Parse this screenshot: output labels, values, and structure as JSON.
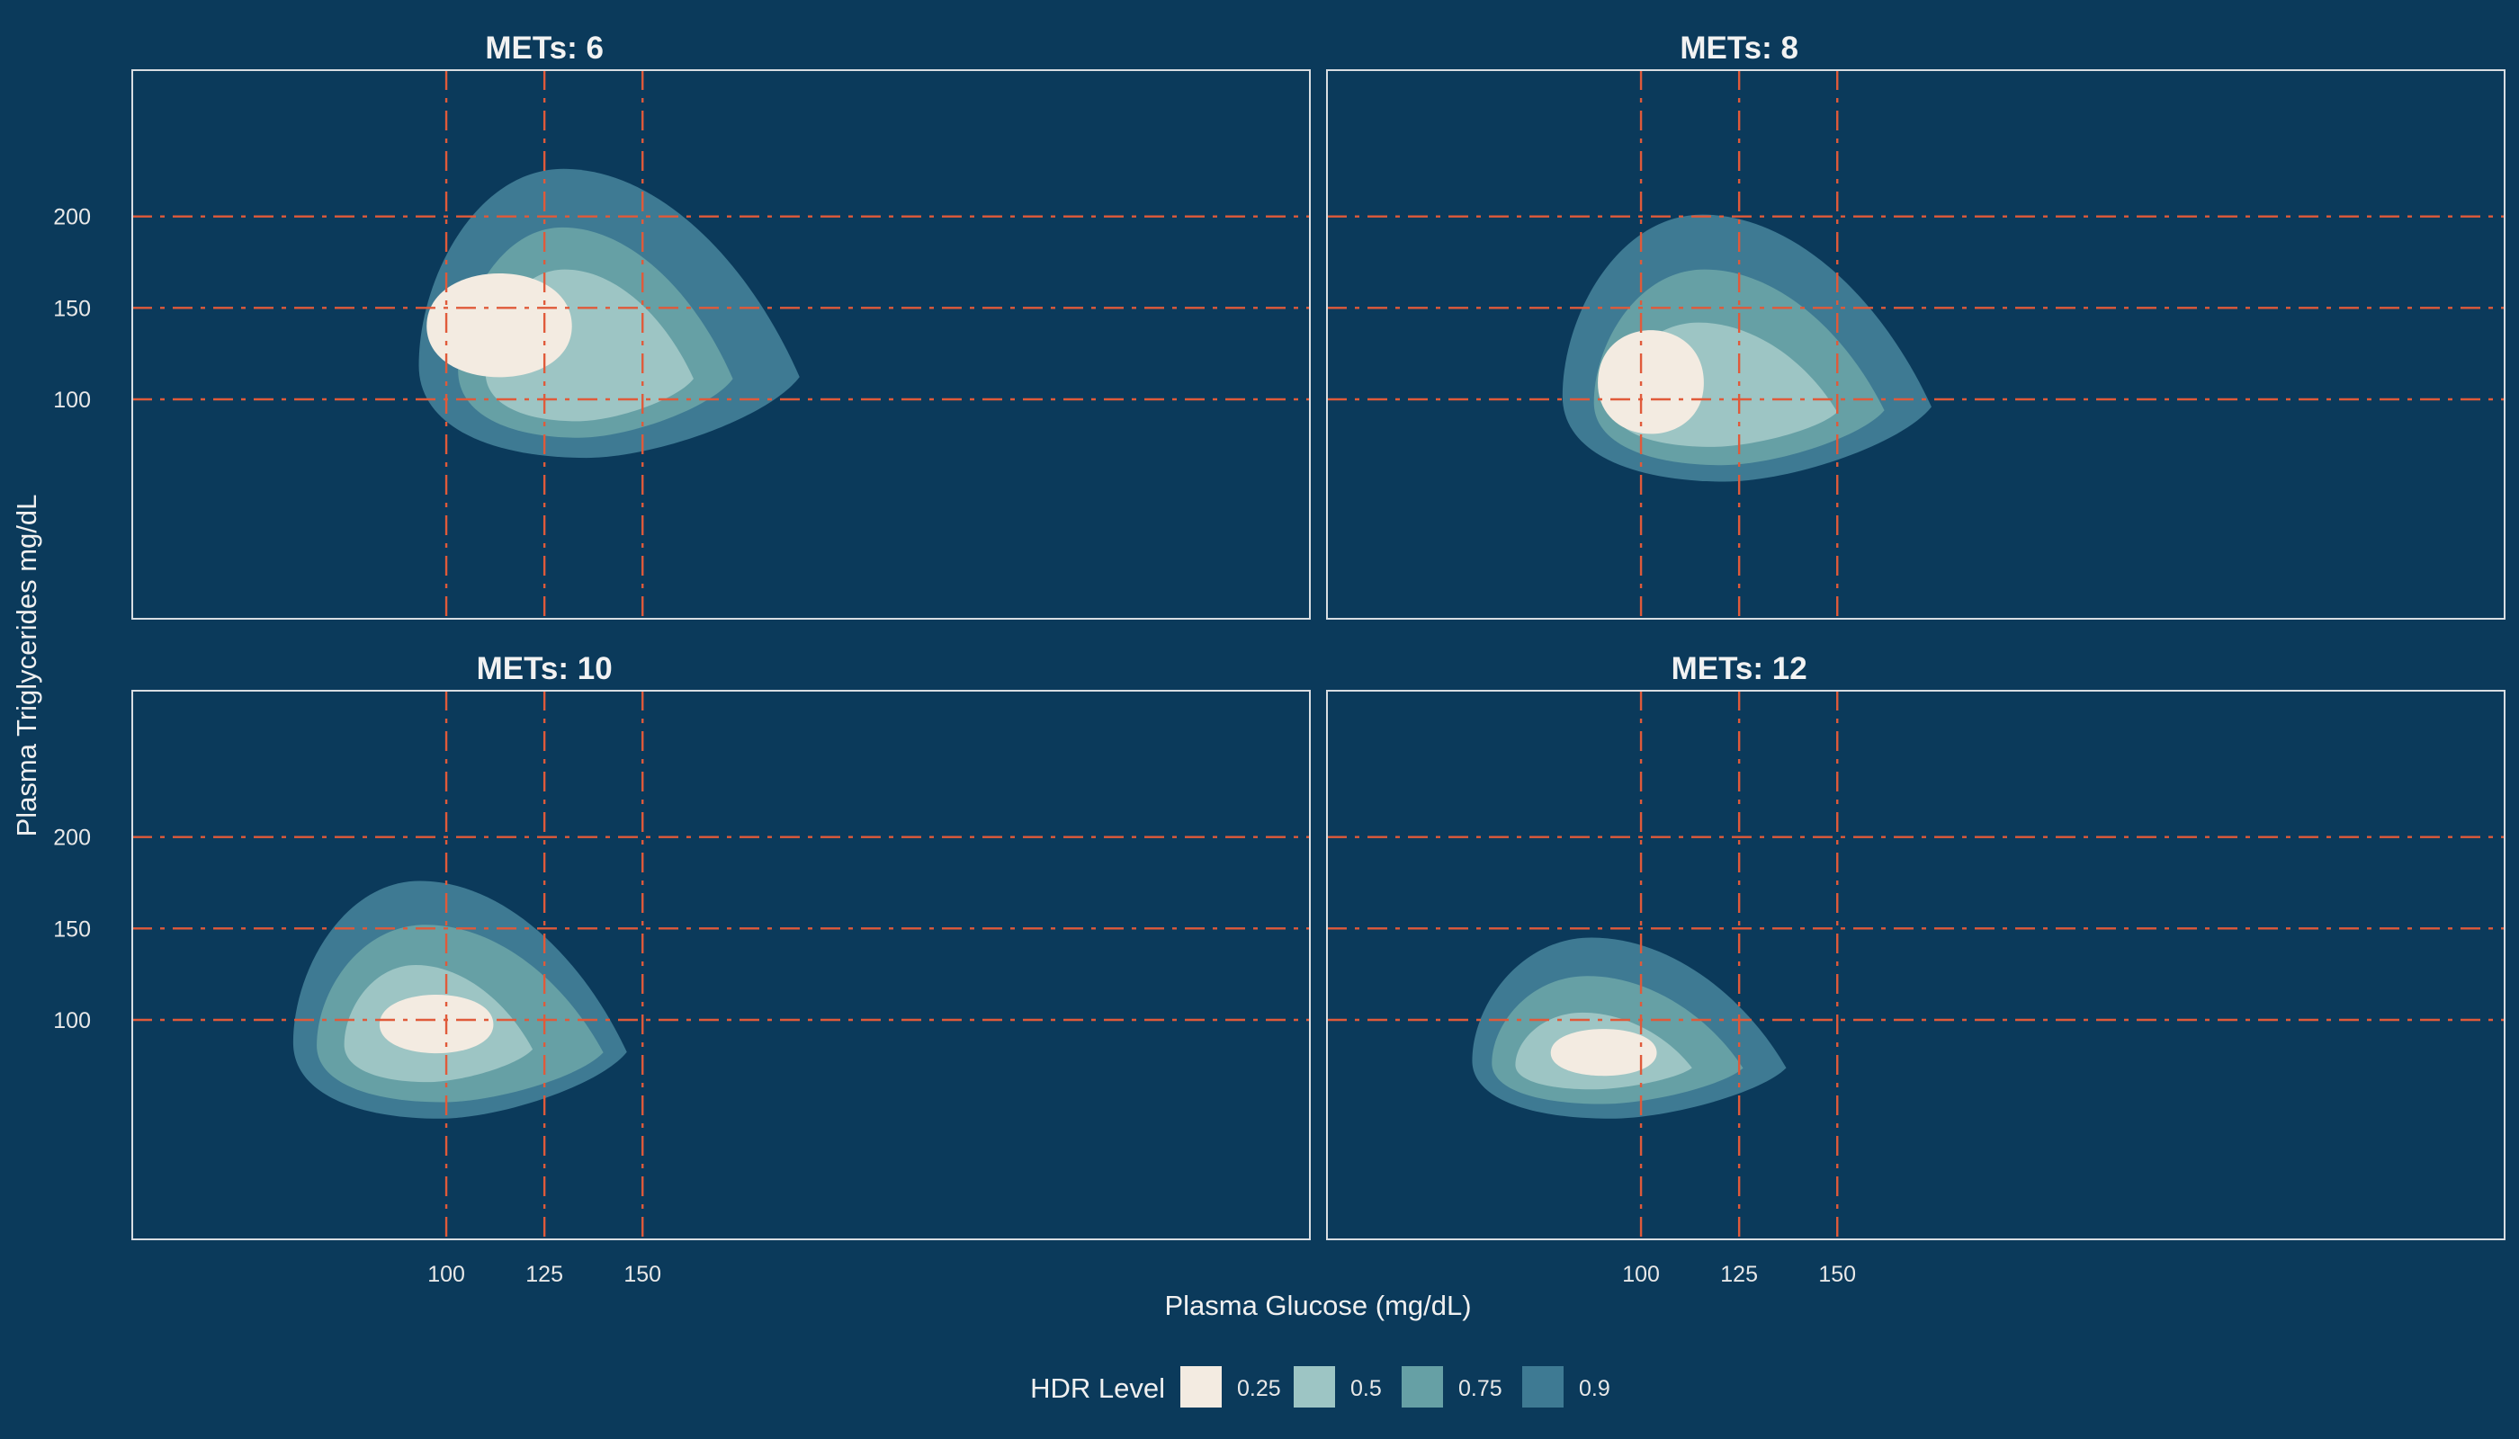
{
  "chart_data": {
    "type": "heatmap",
    "description_type": "faceted highest-density-region contour plot",
    "xlabel": "Plasma Glucose (mg/dL)",
    "ylabel": "Plasma Triglycerides mg/dL",
    "xlim": [
      20,
      320
    ],
    "ylim": [
      -20,
      280
    ],
    "x_ticks": [
      100,
      125,
      150
    ],
    "y_ticks": [
      100,
      150,
      200
    ],
    "reference_lines": {
      "x": [
        100,
        125,
        150
      ],
      "y": [
        100,
        150,
        200
      ],
      "color": "#e05a3a",
      "style": "dashdot"
    },
    "legend": {
      "title": "HDR Level",
      "position": "bottom",
      "levels": [
        {
          "label": "0.25",
          "color": "#f3ebe1"
        },
        {
          "label": "0.5",
          "color": "#9dc5c4"
        },
        {
          "label": "0.75",
          "color": "#66a0a5"
        },
        {
          "label": "0.9",
          "color": "#3e7a93"
        }
      ]
    },
    "facets": [
      {
        "title": "METs: 6",
        "regions": [
          {
            "level": "0.9",
            "x_range": [
              93,
              190
            ],
            "y_range": [
              68,
              226
            ]
          },
          {
            "level": "0.75",
            "x_range": [
              103,
              173
            ],
            "y_range": [
              79,
              194
            ]
          },
          {
            "level": "0.5",
            "x_range": [
              110,
              163
            ],
            "y_range": [
              88,
              171
            ]
          },
          {
            "level": "0.25",
            "x_range": [
              95,
              132
            ],
            "y_range": [
              109,
              171
            ]
          }
        ]
      },
      {
        "title": "METs: 8",
        "regions": [
          {
            "level": "0.9",
            "x_range": [
              80,
              174
            ],
            "y_range": [
              55,
              201
            ]
          },
          {
            "level": "0.75",
            "x_range": [
              88,
              162
            ],
            "y_range": [
              64,
              171
            ]
          },
          {
            "level": "0.5",
            "x_range": [
              93,
              150
            ],
            "y_range": [
              74,
              142
            ]
          },
          {
            "level": "0.25",
            "x_range": [
              89,
              116
            ],
            "y_range": [
              78,
              140
            ]
          }
        ]
      },
      {
        "title": "METs: 10",
        "regions": [
          {
            "level": "0.9",
            "x_range": [
              61,
              146
            ],
            "y_range": [
              46,
              176
            ]
          },
          {
            "level": "0.75",
            "x_range": [
              67,
              140
            ],
            "y_range": [
              55,
              152
            ]
          },
          {
            "level": "0.5",
            "x_range": [
              74,
              122
            ],
            "y_range": [
              66,
              130
            ]
          },
          {
            "level": "0.25",
            "x_range": [
              83,
              112
            ],
            "y_range": [
              80,
              115
            ]
          }
        ]
      },
      {
        "title": "METs: 12",
        "regions": [
          {
            "level": "0.9",
            "x_range": [
              57,
              137
            ],
            "y_range": [
              46,
              145
            ]
          },
          {
            "level": "0.75",
            "x_range": [
              62,
              126
            ],
            "y_range": [
              54,
              124
            ]
          },
          {
            "level": "0.5",
            "x_range": [
              68,
              113
            ],
            "y_range": [
              62,
              104
            ]
          },
          {
            "level": "0.25",
            "x_range": [
              77,
              104
            ],
            "y_range": [
              68,
              96
            ]
          }
        ]
      }
    ],
    "colors": {
      "background": "#0b3a5b",
      "panel_border": "#d8dde2",
      "text": "#f0f0f0"
    }
  }
}
